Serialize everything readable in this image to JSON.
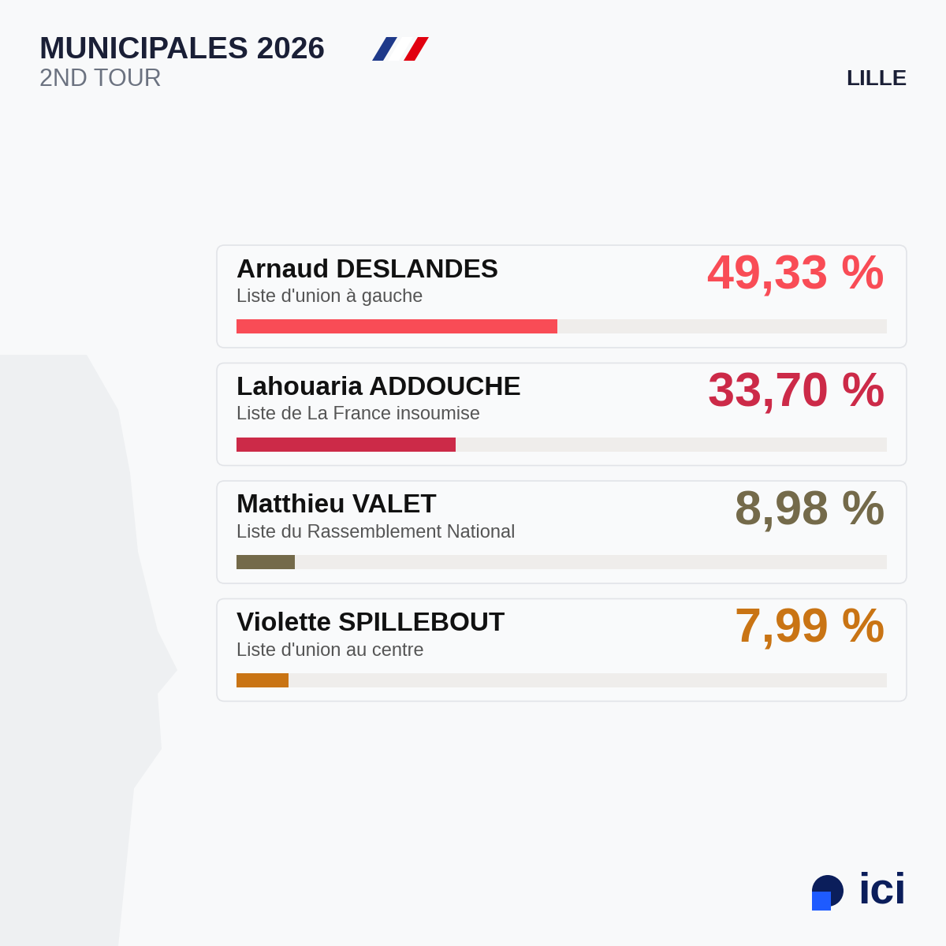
{
  "chart_data": {
    "type": "bar",
    "orientation": "horizontal",
    "title": "MUNICIPALES 2026",
    "subtitle": "2ND TOUR",
    "location": "LILLE",
    "categories": [
      "Arnaud DESLANDES",
      "Lahouaria ADDOUCHE",
      "Matthieu VALET",
      "Violette SPILLEBOUT"
    ],
    "lists": [
      "Liste d'union à gauche",
      "Liste de La France insoumise",
      "Liste du Rassemblement National",
      "Liste d'union au centre"
    ],
    "values": [
      49.33,
      33.7,
      8.98,
      7.99
    ],
    "value_labels": [
      "49,33 %",
      "33,70 %",
      "8,98 %",
      "7,99 %"
    ],
    "colors": [
      "#f94c56",
      "#cc2a48",
      "#746a4a",
      "#c97414"
    ],
    "xlim": [
      0,
      100
    ],
    "tick_labels": false,
    "data_labels": true,
    "source": "ici"
  }
}
